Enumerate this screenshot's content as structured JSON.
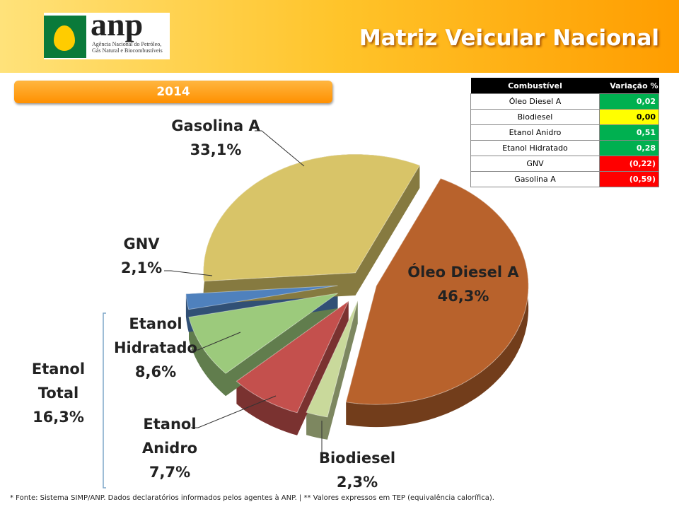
{
  "header": {
    "logo": "anp",
    "agency": "Agência Nacional do Petróleo, Gás Natural e Biocombustíveis"
  },
  "chart_data": {
    "type": "pie",
    "title": "Matriz Veicular Nacional",
    "subtitle": "2014",
    "categories": [
      "Óleo Diesel A",
      "Biodiesel",
      "Etanol Anidro",
      "Etanol Hidratado",
      "GNV",
      "Gasolina A"
    ],
    "values": [
      46.3,
      2.3,
      7.7,
      8.6,
      2.1,
      33.1
    ],
    "value_labels": [
      "46,3%",
      "2,3%",
      "7,7%",
      "8,6%",
      "2,1%",
      "33,1%"
    ],
    "colors": [
      "#b8622c",
      "#c9d99b",
      "#c4504d",
      "#9cca7c",
      "#4f81bd",
      "#d8c468"
    ],
    "annotations": [
      {
        "text": "Etanol Total",
        "value_label": "16,3%"
      }
    ]
  },
  "table": {
    "header": [
      "Combustível",
      "Variação %"
    ],
    "rows": [
      {
        "fuel": "Óleo Diesel A",
        "variation": "0,02",
        "color": "#00b050"
      },
      {
        "fuel": "Biodiesel",
        "variation": "0,00",
        "color": "#ffff00"
      },
      {
        "fuel": "Etanol Anidro",
        "variation": "0,51",
        "color": "#00b050"
      },
      {
        "fuel": "Etanol Hidratado",
        "variation": "0,28",
        "color": "#00b050"
      },
      {
        "fuel": "GNV",
        "variation": "(0,22)",
        "color": "#ff0000"
      },
      {
        "fuel": "Gasolina A",
        "variation": "(0,59)",
        "color": "#ff0000"
      }
    ]
  },
  "footnote": "*  Fonte: Sistema SIMP/ANP. Dados declaratórios informados pelos agentes à ANP. | **  Valores expressos em TEP (equivalência calorífica)."
}
